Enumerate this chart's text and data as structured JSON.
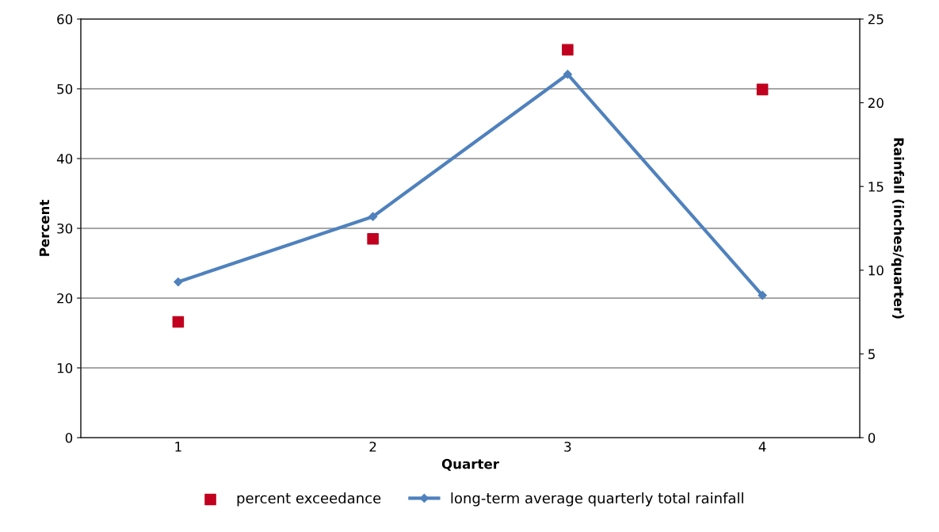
{
  "chart_data": {
    "type": "line",
    "xlabel": "Quarter",
    "ylabel": "Percent",
    "y2label": "Rainfall (inches/quarter)",
    "categories": [
      "1",
      "2",
      "3",
      "4"
    ],
    "series": [
      {
        "name": "percent exceedance",
        "type": "scatter",
        "color": "#c0001e",
        "marker": "square",
        "values": [
          16.6,
          28.5,
          55.6,
          49.9
        ]
      },
      {
        "name": "long-term average quarterly total rainfall",
        "axis": "y2",
        "color": "#4f81bd",
        "marker": "diamond",
        "line_style": "solid",
        "values": [
          9.3,
          13.2,
          21.7,
          8.5
        ]
      }
    ],
    "ylim": [
      0,
      60
    ],
    "yticks": [
      0,
      10,
      20,
      30,
      40,
      50,
      60
    ],
    "y2lim": [
      0,
      25
    ],
    "y2ticks": [
      0,
      5,
      10,
      15,
      20,
      25
    ],
    "grid": "y",
    "legend": "bottom"
  }
}
